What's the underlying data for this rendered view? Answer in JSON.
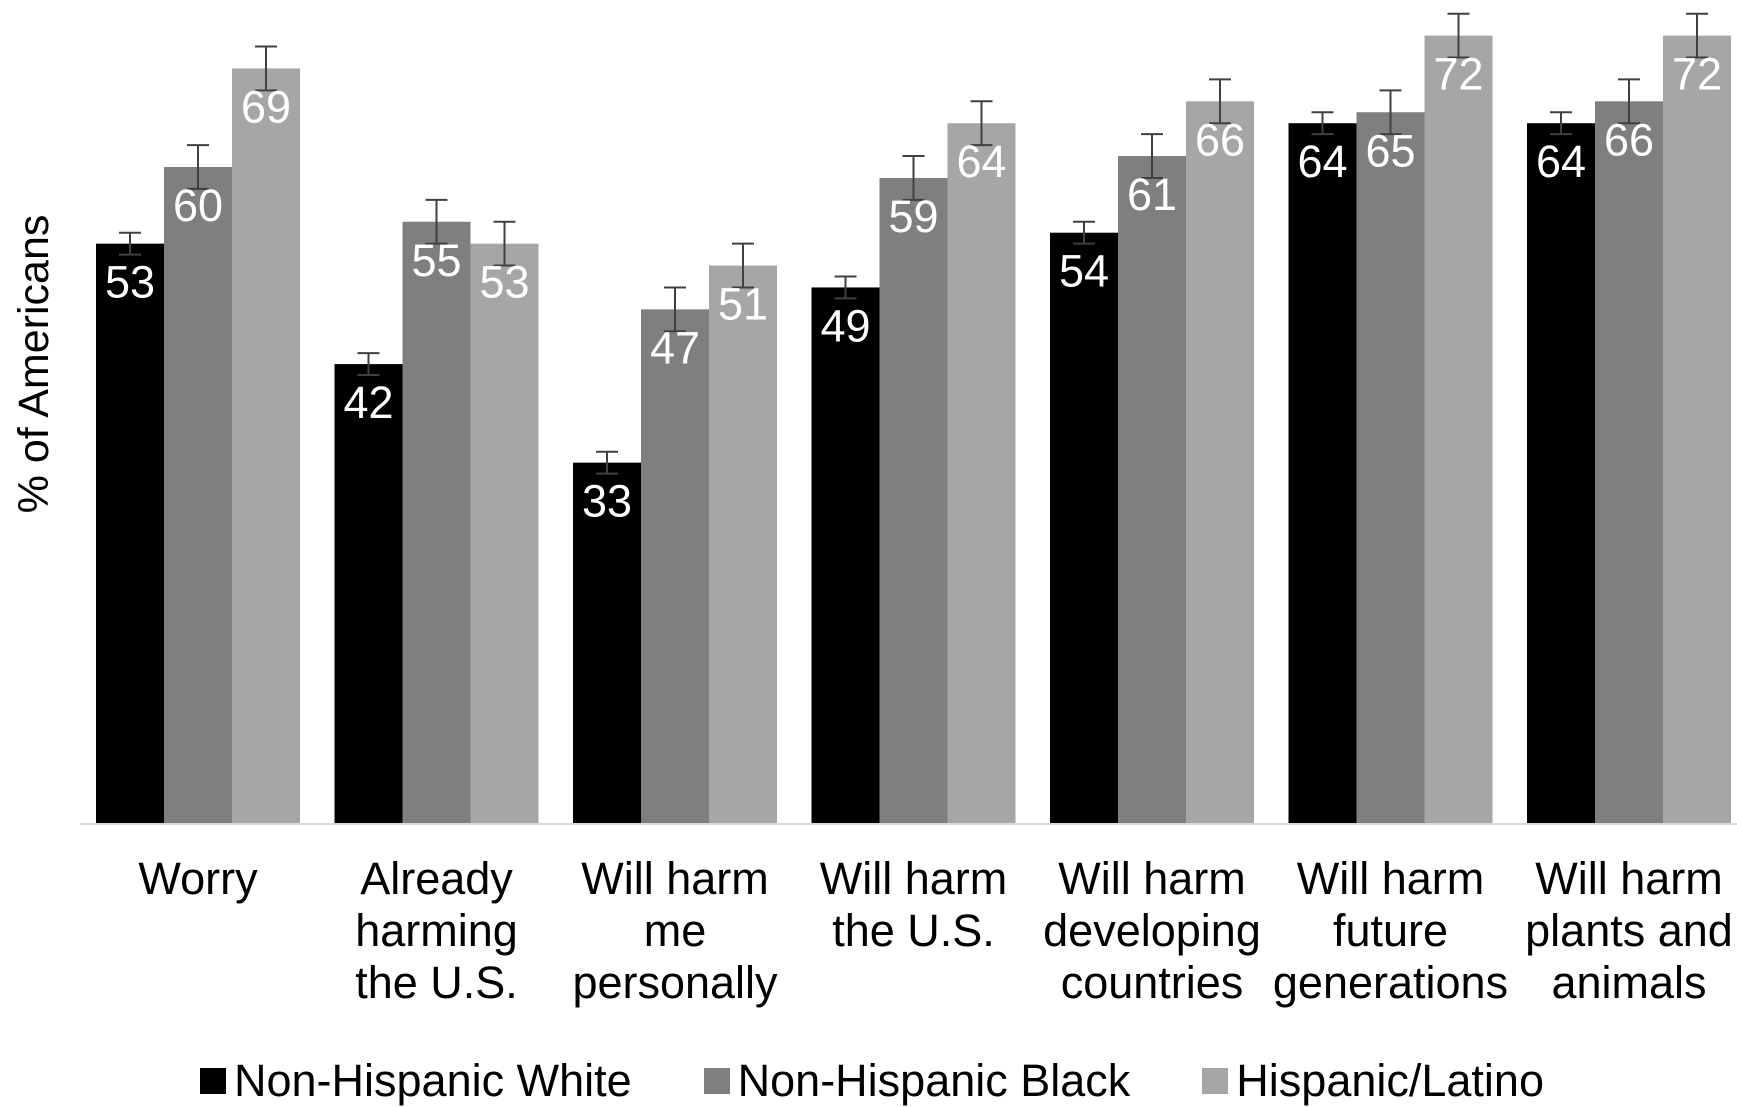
{
  "chart_data": {
    "type": "bar",
    "ylabel": "% of Americans",
    "categories": [
      [
        "Worry"
      ],
      [
        "Already",
        "harming",
        "the U.S."
      ],
      [
        "Will harm",
        "me",
        "personally"
      ],
      [
        "Will harm",
        "the U.S."
      ],
      [
        "Will harm",
        "developing",
        "countries"
      ],
      [
        "Will harm",
        "future",
        "generations"
      ],
      [
        "Will harm",
        "plants and",
        "animals"
      ]
    ],
    "series": [
      {
        "name": "Non-Hispanic White",
        "color": "#000000",
        "values": [
          53,
          42,
          33,
          49,
          54,
          64,
          64
        ],
        "error": [
          1,
          1,
          1,
          1,
          1,
          1,
          1
        ]
      },
      {
        "name": "Non-Hispanic Black",
        "color": "#7f7f7f",
        "values": [
          60,
          55,
          47,
          59,
          61,
          65,
          66
        ],
        "error": [
          2,
          2,
          2,
          2,
          2,
          2,
          2
        ]
      },
      {
        "name": "Hispanic/Latino",
        "color": "#a6a6a6",
        "values": [
          69,
          53,
          51,
          64,
          66,
          72,
          72
        ],
        "error": [
          2,
          2,
          2,
          2,
          2,
          2,
          2
        ]
      }
    ],
    "ylim": [
      0,
      75
    ],
    "grid": false,
    "legend_position": "bottom"
  }
}
